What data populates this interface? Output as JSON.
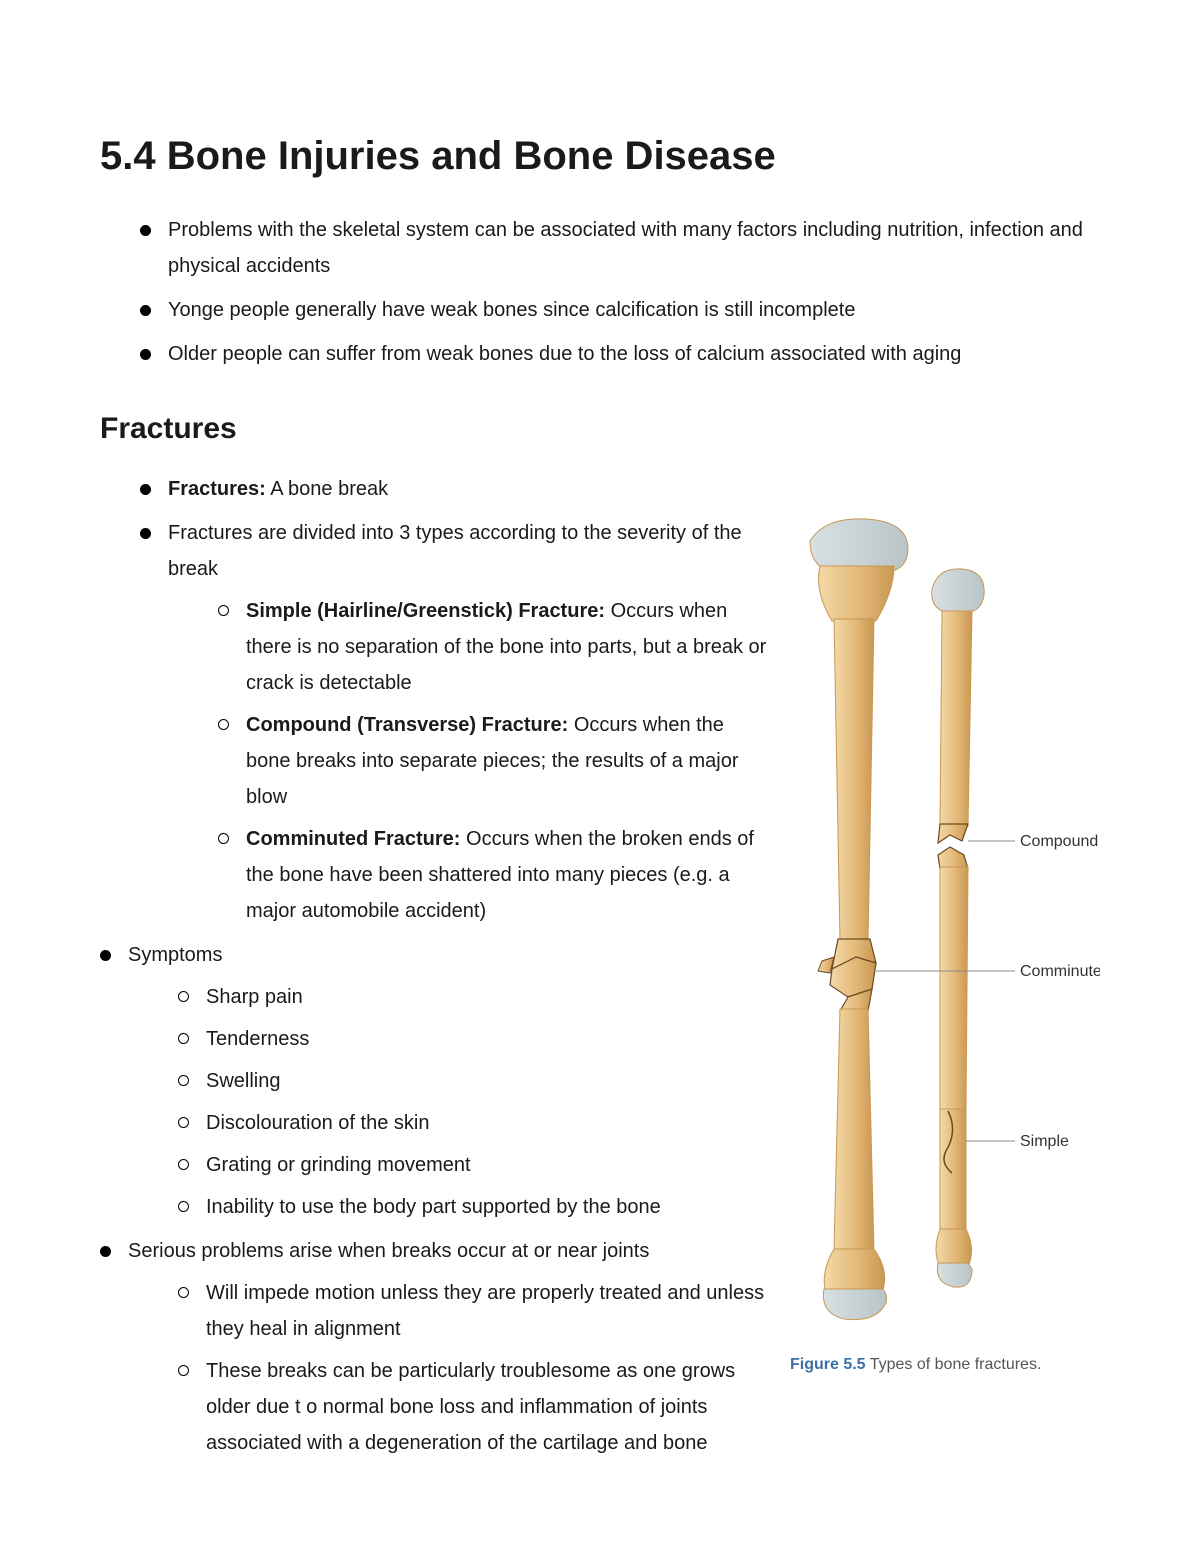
{
  "title": "5.4 Bone Injuries and Bone Disease",
  "intro_bullets": [
    "Problems with the skeletal system can be associated with many factors including nutrition, infection and physical accidents",
    "Yonge people generally have weak bones since calcification is still incomplete",
    "Older people can suffer from weak bones due to the loss of calcium associated with aging"
  ],
  "section_heading": "Fractures",
  "fractures": {
    "def_label": "Fractures:",
    "def_text": " A bone break",
    "types_intro": "Fractures are divided into 3 types according to the severity of the break",
    "types": [
      {
        "label": "Simple (Hairline/Greenstick) Fracture:",
        "text": " Occurs when there is no separation of the bone into parts, but a break or crack is detectable"
      },
      {
        "label": "Compound (Transverse) Fracture:",
        "text": " Occurs when the bone breaks into separate pieces; the results of a major blow"
      },
      {
        "label": "Comminuted Fracture:",
        "text": " Occurs when the broken ends of the bone have been shattered into many pieces (e.g. a major automobile accident)"
      }
    ],
    "symptoms_label": "Symptoms",
    "symptoms": [
      "Sharp pain",
      "Tenderness",
      "Swelling",
      "Discolouration of the skin",
      "Grating or grinding movement",
      "Inability to use the body part supported by the bone"
    ],
    "serious_intro": "Serious problems arise when breaks occur at or near joints",
    "serious_sub": [
      "Will impede motion unless they are properly treated and unless they heal in alignment",
      "These breaks can be particularly troublesome as one grows older due t o normal bone loss and inflammation of joints associated with a degeneration of the cartilage and bone"
    ]
  },
  "figure": {
    "label": "Figure 5.5",
    "caption": " Types of bone fractures.",
    "annotations": {
      "compound": "Compound",
      "comminuted": "Comminuted",
      "simple": "Simple"
    },
    "colors": {
      "bone_fill": "#e3b878",
      "bone_shadow": "#c99752",
      "bone_highlight": "#f3d9a8",
      "cartilage": "#b8c4c8",
      "crack": "#6a4b20",
      "leader": "#888888",
      "background": "#ffffff"
    }
  }
}
